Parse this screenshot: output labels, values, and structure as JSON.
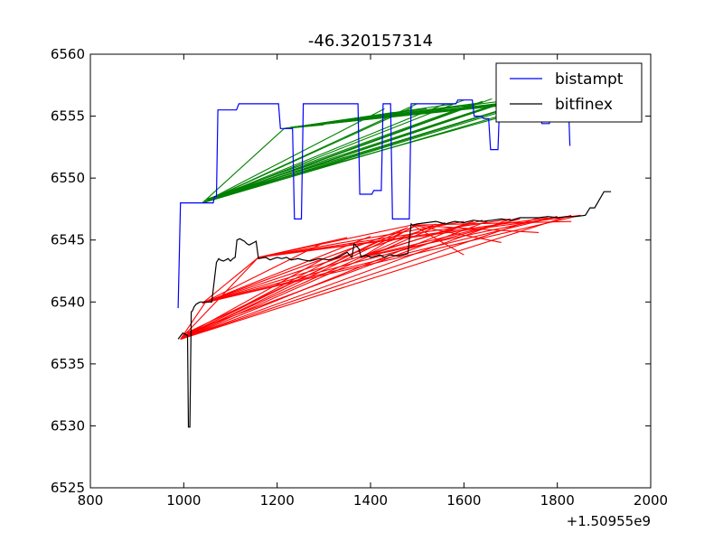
{
  "chart_data": {
    "type": "line",
    "title": "-46.320157314",
    "xlabel": "",
    "ylabel": "",
    "x_offset_label": "+1.50955e9",
    "xlim": [
      800,
      2000
    ],
    "ylim": [
      6525,
      6560
    ],
    "x_ticks": [
      800,
      1000,
      1200,
      1400,
      1600,
      1800,
      2000
    ],
    "y_ticks": [
      6525,
      6530,
      6535,
      6540,
      6545,
      6550,
      6555,
      6560
    ],
    "legend_position": "top-right",
    "series": [
      {
        "name": "bistampt",
        "color": "#0000ff",
        "x": [
          988,
          993,
          1040,
          1043,
          1063,
          1066,
          1070,
          1073,
          1113,
          1118,
          1203,
          1207,
          1233,
          1237,
          1252,
          1256,
          1263,
          1267,
          1373,
          1377,
          1403,
          1407,
          1423,
          1427,
          1443,
          1447,
          1468,
          1472,
          1483,
          1487,
          1490,
          1495,
          1583,
          1587,
          1603,
          1607,
          1618,
          1622,
          1638,
          1642,
          1653,
          1657,
          1673,
          1677,
          1703,
          1707,
          1733,
          1737,
          1763,
          1767,
          1783,
          1787,
          1803,
          1807,
          1823,
          1827
        ],
        "y": [
          6539.5,
          6548.0,
          6548.0,
          6548.0,
          6548.0,
          6548.5,
          6548.5,
          6555.5,
          6555.5,
          6556.0,
          6556.0,
          6554.0,
          6554.0,
          6546.7,
          6546.7,
          6556.0,
          6556.0,
          6556.0,
          6556.0,
          6548.7,
          6548.7,
          6549.0,
          6549.0,
          6556.0,
          6556.0,
          6546.7,
          6546.7,
          6546.7,
          6546.7,
          6556.0,
          6556.0,
          6556.0,
          6556.0,
          6556.3,
          6556.3,
          6556.3,
          6556.3,
          6555.0,
          6555.0,
          6554.8,
          6554.8,
          6552.3,
          6552.3,
          6556.5,
          6556.5,
          6556.5,
          6556.5,
          6555.5,
          6555.5,
          6554.4,
          6554.4,
          6556.0,
          6556.0,
          6556.8,
          6556.8,
          6552.6
        ]
      },
      {
        "name": "bitfinex",
        "color": "#000000",
        "x": [
          988,
          998,
          1008,
          1010,
          1013,
          1016,
          1019,
          1022,
          1026,
          1030,
          1035,
          1040,
          1060,
          1070,
          1075,
          1078,
          1085,
          1095,
          1100,
          1105,
          1110,
          1114,
          1120,
          1125,
          1130,
          1135,
          1140,
          1145,
          1150,
          1155,
          1160,
          1175,
          1185,
          1200,
          1210,
          1220,
          1230,
          1245,
          1255,
          1270,
          1290,
          1310,
          1330,
          1350,
          1360,
          1365,
          1370,
          1375,
          1380,
          1390,
          1400,
          1420,
          1430,
          1440,
          1460,
          1480,
          1487,
          1490,
          1500,
          1520,
          1540,
          1550,
          1560,
          1570,
          1580,
          1600,
          1620,
          1640,
          1660,
          1680,
          1700,
          1720,
          1740,
          1760,
          1780,
          1800,
          1820,
          1840,
          1860,
          1870,
          1880,
          1900,
          1915
        ],
        "y": [
          6537.0,
          6537.5,
          6537.3,
          6529.9,
          6529.9,
          6539.2,
          6539.3,
          6539.6,
          6539.8,
          6539.9,
          6540.0,
          6540.0,
          6540.0,
          6543.2,
          6543.5,
          6543.4,
          6543.3,
          6543.5,
          6543.3,
          6543.5,
          6543.6,
          6545.0,
          6545.1,
          6545.0,
          6544.9,
          6544.7,
          6544.6,
          6544.7,
          6544.8,
          6544.9,
          6543.5,
          6543.6,
          6543.4,
          6543.6,
          6543.5,
          6543.6,
          6543.4,
          6543.5,
          6543.4,
          6543.3,
          6543.5,
          6543.4,
          6543.6,
          6544.0,
          6543.6,
          6544.7,
          6544.5,
          6544.3,
          6543.6,
          6543.8,
          6543.6,
          6543.8,
          6543.6,
          6543.8,
          6543.7,
          6543.9,
          6546.3,
          6546.2,
          6546.3,
          6546.4,
          6546.5,
          6546.4,
          6546.3,
          6546.4,
          6546.5,
          6546.4,
          6546.6,
          6546.5,
          6546.6,
          6546.7,
          6546.6,
          6546.8,
          6546.8,
          6546.8,
          6546.9,
          6546.8,
          6546.9,
          6546.9,
          6547.0,
          6547.6,
          6547.6,
          6548.9,
          6548.9
        ]
      }
    ],
    "connector_groups": [
      {
        "name": "green connectors",
        "color": "#008000",
        "segments": [
          [
            1040,
            6548.0,
            1215,
            6554.0
          ],
          [
            1040,
            6548.0,
            1430,
            6555.6
          ],
          [
            1040,
            6548.0,
            1490,
            6555.7
          ],
          [
            1040,
            6548.0,
            1600,
            6556.3
          ],
          [
            1040,
            6548.0,
            1660,
            6556.4
          ],
          [
            1040,
            6548.0,
            1720,
            6556.5
          ],
          [
            1040,
            6548.0,
            1780,
            6556.5
          ],
          [
            1040,
            6548.0,
            1820,
            6556.6
          ],
          [
            1045,
            6548.1,
            1500,
            6556.0
          ],
          [
            1045,
            6548.1,
            1560,
            6556.0
          ],
          [
            1045,
            6548.1,
            1640,
            6556.2
          ],
          [
            1045,
            6548.1,
            1700,
            6556.3
          ],
          [
            1045,
            6548.1,
            1760,
            6556.4
          ],
          [
            1050,
            6548.3,
            1620,
            6556.0
          ],
          [
            1050,
            6548.3,
            1680,
            6556.1
          ],
          [
            1050,
            6548.3,
            1740,
            6556.2
          ],
          [
            1050,
            6548.3,
            1810,
            6556.3
          ],
          [
            1215,
            6554.0,
            1300,
            6554.3
          ],
          [
            1215,
            6554.0,
            1400,
            6554.8
          ],
          [
            1215,
            6554.0,
            1450,
            6555.3
          ],
          [
            1215,
            6554.0,
            1520,
            6555.6
          ],
          [
            1215,
            6554.0,
            1580,
            6556.0
          ],
          [
            1215,
            6554.0,
            1640,
            6556.1
          ],
          [
            1215,
            6554.0,
            1700,
            6556.3
          ],
          [
            1215,
            6554.0,
            1760,
            6556.4
          ],
          [
            1215,
            6554.0,
            1820,
            6556.5
          ],
          [
            1230,
            6554.1,
            1480,
            6555.1
          ],
          [
            1230,
            6554.1,
            1560,
            6555.6
          ],
          [
            1230,
            6554.1,
            1620,
            6555.9
          ],
          [
            1230,
            6554.1,
            1680,
            6556.0
          ],
          [
            1230,
            6554.1,
            1740,
            6556.2
          ],
          [
            1230,
            6554.1,
            1800,
            6556.3
          ]
        ]
      },
      {
        "name": "red connectors",
        "color": "#ff0000",
        "segments": [
          [
            993,
            6537.0,
            1045,
            6539.9
          ],
          [
            993,
            6537.0,
            1160,
            6543.6
          ],
          [
            993,
            6537.0,
            1380,
            6544.7
          ],
          [
            993,
            6537.0,
            1500,
            6546.2
          ],
          [
            993,
            6537.0,
            1560,
            6546.4
          ],
          [
            993,
            6537.0,
            1620,
            6546.5
          ],
          [
            993,
            6537.0,
            1700,
            6546.7
          ],
          [
            993,
            6537.0,
            1760,
            6546.8
          ],
          [
            993,
            6537.0,
            1830,
            6547.0
          ],
          [
            998,
            6537.2,
            1300,
            6543.5
          ],
          [
            998,
            6537.2,
            1420,
            6545.0
          ],
          [
            998,
            6537.2,
            1540,
            6546.3
          ],
          [
            1000,
            6537.4,
            1480,
            6546.0
          ],
          [
            1000,
            6537.4,
            1650,
            6546.5
          ],
          [
            1040,
            6539.9,
            1160,
            6543.6
          ],
          [
            1040,
            6539.9,
            1300,
            6544.8
          ],
          [
            1040,
            6539.9,
            1400,
            6545.3
          ],
          [
            1040,
            6539.9,
            1480,
            6546.0
          ],
          [
            1040,
            6539.9,
            1560,
            6546.4
          ],
          [
            1040,
            6539.9,
            1640,
            6546.6
          ],
          [
            1040,
            6539.9,
            1720,
            6546.7
          ],
          [
            1040,
            6539.9,
            1800,
            6546.9
          ],
          [
            1040,
            6539.9,
            1850,
            6547.0
          ],
          [
            1160,
            6543.6,
            1350,
            6545.2
          ],
          [
            1160,
            6543.6,
            1500,
            6546.3
          ],
          [
            1160,
            6543.6,
            1600,
            6546.5
          ],
          [
            1160,
            6543.6,
            1700,
            6546.7
          ],
          [
            1160,
            6543.6,
            1780,
            6546.8
          ],
          [
            1160,
            6543.6,
            1850,
            6547.0
          ],
          [
            1380,
            6543.6,
            1500,
            6546.3
          ],
          [
            1380,
            6543.6,
            1620,
            6546.5
          ],
          [
            1380,
            6543.6,
            1720,
            6546.7
          ],
          [
            1380,
            6543.6,
            1800,
            6546.9
          ],
          [
            1490,
            6546.2,
            1600,
            6543.8
          ],
          [
            1490,
            6546.2,
            1680,
            6544.8
          ],
          [
            1490,
            6546.2,
            1760,
            6545.6
          ],
          [
            1490,
            6546.2,
            1830,
            6546.5
          ]
        ]
      }
    ]
  }
}
